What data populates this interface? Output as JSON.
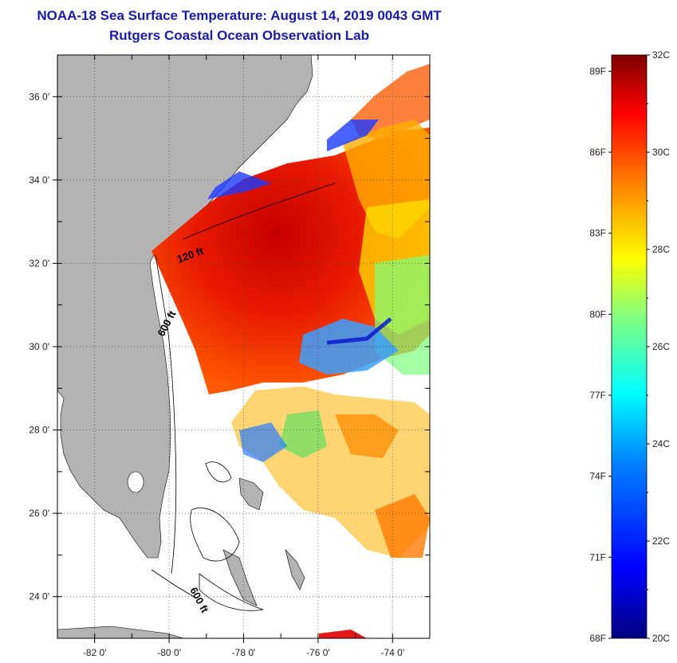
{
  "header": {
    "title_line1": "NOAA-18 Sea Surface Temperature:  August 14, 2019 0043 GMT",
    "title_line2": "Rutgers Coastal Ocean Observation Lab"
  },
  "map": {
    "lon_range": [
      -83,
      -73
    ],
    "lat_range": [
      23,
      37
    ],
    "lat_ticks": [
      {
        "value": 36,
        "label": "36 0'"
      },
      {
        "value": 34,
        "label": "34 0'"
      },
      {
        "value": 32,
        "label": "32 0'"
      },
      {
        "value": 30,
        "label": "30 0'"
      },
      {
        "value": 28,
        "label": "28 0'"
      },
      {
        "value": 26,
        "label": "26 0'"
      },
      {
        "value": 24,
        "label": "24 0'"
      }
    ],
    "lon_ticks": [
      {
        "value": -82,
        "label": "-82 0'"
      },
      {
        "value": -80,
        "label": "-80 0'"
      },
      {
        "value": -78,
        "label": "-78 0'"
      },
      {
        "value": -76,
        "label": "-76 0'"
      },
      {
        "value": -74,
        "label": "-74 0'"
      }
    ],
    "contour_labels": [
      {
        "text": "120 ft"
      },
      {
        "text": "600 ft"
      },
      {
        "text": "600 ft"
      }
    ],
    "land_color": "#b3b3b3",
    "ocean_color": "#ffffff"
  },
  "colorbar": {
    "min_c": 20,
    "max_c": 32,
    "celsius_labels": [
      {
        "value": 32,
        "label": "32C"
      },
      {
        "value": 30,
        "label": "30C"
      },
      {
        "value": 28,
        "label": "28C"
      },
      {
        "value": 26,
        "label": "26C"
      },
      {
        "value": 24,
        "label": "24C"
      },
      {
        "value": 22,
        "label": "22C"
      },
      {
        "value": 20,
        "label": "20C"
      }
    ],
    "fahrenheit_labels": [
      {
        "value": 89,
        "label": "89F"
      },
      {
        "value": 86,
        "label": "86F"
      },
      {
        "value": 83,
        "label": "83F"
      },
      {
        "value": 80,
        "label": "80F"
      },
      {
        "value": 77,
        "label": "77F"
      },
      {
        "value": 74,
        "label": "74F"
      },
      {
        "value": 71,
        "label": "71F"
      },
      {
        "value": 68,
        "label": "68F"
      }
    ],
    "colors": [
      "#000080",
      "#0000ff",
      "#0080ff",
      "#00ffff",
      "#80ff80",
      "#ffff00",
      "#ff8000",
      "#ff0000",
      "#800000"
    ]
  }
}
